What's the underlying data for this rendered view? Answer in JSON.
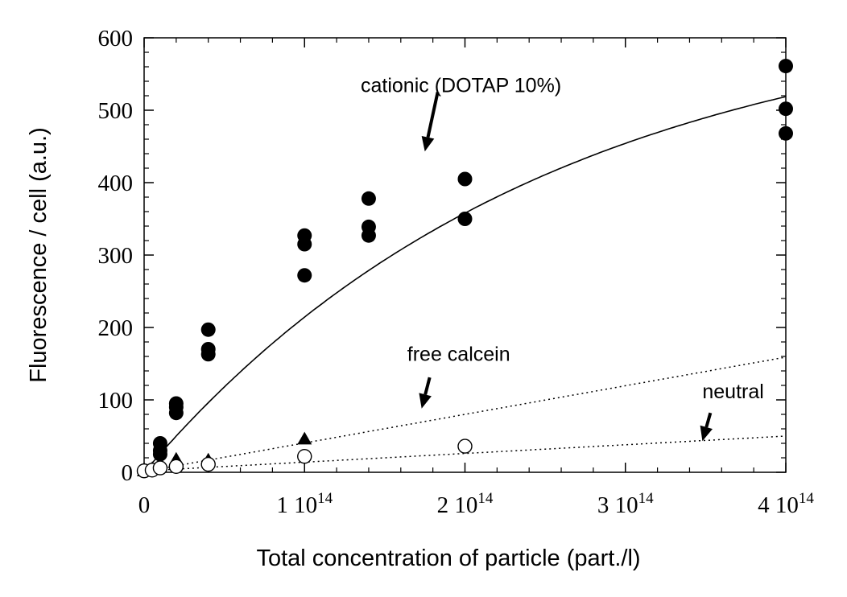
{
  "chart_data": {
    "type": "scatter",
    "xlabel": "Total concentration of particle (part./l)",
    "ylabel": "Fluorescence / cell (a.u.)",
    "xlim": [
      0,
      400000000000000.0
    ],
    "ylim": [
      0,
      600
    ],
    "x_ticks": [
      {
        "value": 0,
        "mantissa": "0",
        "exp": ""
      },
      {
        "value": 100000000000000.0,
        "mantissa": "1 10",
        "exp": "14"
      },
      {
        "value": 200000000000000.0,
        "mantissa": "2 10",
        "exp": "14"
      },
      {
        "value": 300000000000000.0,
        "mantissa": "3 10",
        "exp": "14"
      },
      {
        "value": 400000000000000.0,
        "mantissa": "4 10",
        "exp": "14"
      }
    ],
    "y_ticks": [
      0,
      100,
      200,
      300,
      400,
      500,
      600
    ],
    "grid": false,
    "series": [
      {
        "name": "cationic (DOTAP 10%)",
        "marker": "filled-circle",
        "points": [
          [
            0,
            2
          ],
          [
            10000000000000.0,
            40
          ],
          [
            10000000000000.0,
            30
          ],
          [
            10000000000000.0,
            25
          ],
          [
            20000000000000.0,
            95
          ],
          [
            20000000000000.0,
            90
          ],
          [
            20000000000000.0,
            82
          ],
          [
            40000000000000.0,
            197
          ],
          [
            40000000000000.0,
            170
          ],
          [
            40000000000000.0,
            163
          ],
          [
            100000000000000.0,
            327
          ],
          [
            100000000000000.0,
            315
          ],
          [
            100000000000000.0,
            272
          ],
          [
            140000000000000.0,
            378
          ],
          [
            140000000000000.0,
            339
          ],
          [
            140000000000000.0,
            327
          ],
          [
            200000000000000.0,
            405
          ],
          [
            200000000000000.0,
            350
          ],
          [
            400000000000000.0,
            561
          ],
          [
            400000000000000.0,
            502
          ],
          [
            400000000000000.0,
            468
          ]
        ],
        "fit": {
          "style": "solid",
          "model": "saturation",
          "vmax": 650,
          "k": 4e-15
        }
      },
      {
        "name": "free calcein",
        "marker": "filled-triangle",
        "points": [
          [
            0,
            2
          ],
          [
            5000000000000.0,
            5
          ],
          [
            10000000000000.0,
            12
          ],
          [
            20000000000000.0,
            18
          ],
          [
            40000000000000.0,
            17
          ],
          [
            100000000000000.0,
            46
          ]
        ],
        "fit": {
          "style": "dotted",
          "model": "linear",
          "slope": 3.95e-13,
          "intercept": 1
        }
      },
      {
        "name": "neutral",
        "marker": "open-circle",
        "points": [
          [
            0,
            2
          ],
          [
            5000000000000.0,
            3
          ],
          [
            10000000000000.0,
            6
          ],
          [
            20000000000000.0,
            8
          ],
          [
            40000000000000.0,
            11
          ],
          [
            100000000000000.0,
            22
          ],
          [
            200000000000000.0,
            36
          ]
        ],
        "fit": {
          "style": "dotted",
          "model": "linear",
          "slope": 1.2e-13,
          "intercept": 2
        }
      }
    ],
    "annotations": [
      {
        "id": "cationic",
        "text": "cationic (DOTAP 10%)",
        "x": 135000000000000.0,
        "y": 525,
        "ax1": 183000000000000.0,
        "ay1": 525,
        "ax2": 175000000000000.0,
        "ay2": 443
      },
      {
        "id": "calcein",
        "text": "free calcein",
        "x": 164000000000000.0,
        "y": 154,
        "ax1": 178000000000000.0,
        "ay1": 131,
        "ax2": 173000000000000.0,
        "ay2": 88
      },
      {
        "id": "neutral",
        "text": "neutral",
        "x": 348000000000000.0,
        "y": 102,
        "ax1": 353000000000000.0,
        "ay1": 82,
        "ax2": 348000000000000.0,
        "ay2": 43
      }
    ]
  }
}
